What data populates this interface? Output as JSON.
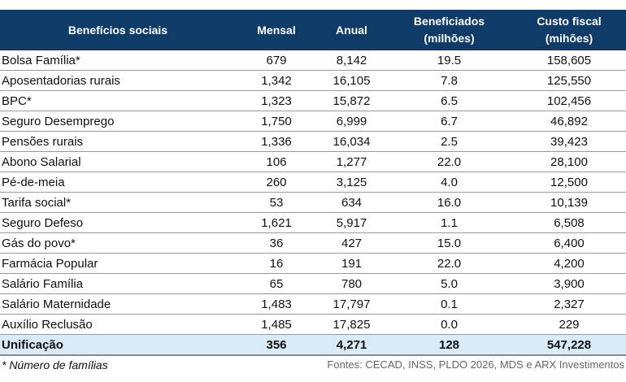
{
  "headers": [
    "Benefícios sociais",
    "Mensal",
    "Anual",
    "Beneficiados (milhões)",
    "Custo fiscal (mihões)"
  ],
  "rows": [
    [
      "Bolsa Família*",
      "679",
      "8,142",
      "19.5",
      "158,605"
    ],
    [
      "Aposentadorias rurais",
      "1,342",
      "16,105",
      "7.8",
      "125,550"
    ],
    [
      "BPC*",
      "1,323",
      "15,872",
      "6.5",
      "102,456"
    ],
    [
      "Seguro Desemprego",
      "1,750",
      "6,999",
      "6.7",
      "46,892"
    ],
    [
      "Pensões rurais",
      "1,336",
      "16,034",
      "2.5",
      "39,423"
    ],
    [
      "Abono Salarial",
      "106",
      "1,277",
      "22.0",
      "28,100"
    ],
    [
      "Pé-de-meia",
      "260",
      "3,125",
      "4.0",
      "12,500"
    ],
    [
      "Tarifa social*",
      "53",
      "634",
      "16.0",
      "10,139"
    ],
    [
      "Seguro Defeso",
      "1,621",
      "5,917",
      "1.1",
      "6,508"
    ],
    [
      "Gás do povo*",
      "36",
      "427",
      "15.0",
      "6,400"
    ],
    [
      "Farmácia Popular",
      "16",
      "191",
      "22.0",
      "4,200"
    ],
    [
      "Salário Família",
      "65",
      "780",
      "5.0",
      "3,900"
    ],
    [
      "Salário Maternidade",
      "1,483",
      "17,797",
      "0.1",
      "2,327"
    ],
    [
      "Auxílio Reclusão",
      "1,485",
      "17,825",
      "0.0",
      "229"
    ]
  ],
  "total": [
    "Unificação",
    "356",
    "4,271",
    "128",
    "547,228"
  ],
  "footnote": "* Número de famílias",
  "source": "Fontes: CECAD, INSS, PLDO 2026, MDS e ARX Investimentos",
  "colors": {
    "header": "#0f3b69",
    "total_row": "#d9ebf9"
  }
}
